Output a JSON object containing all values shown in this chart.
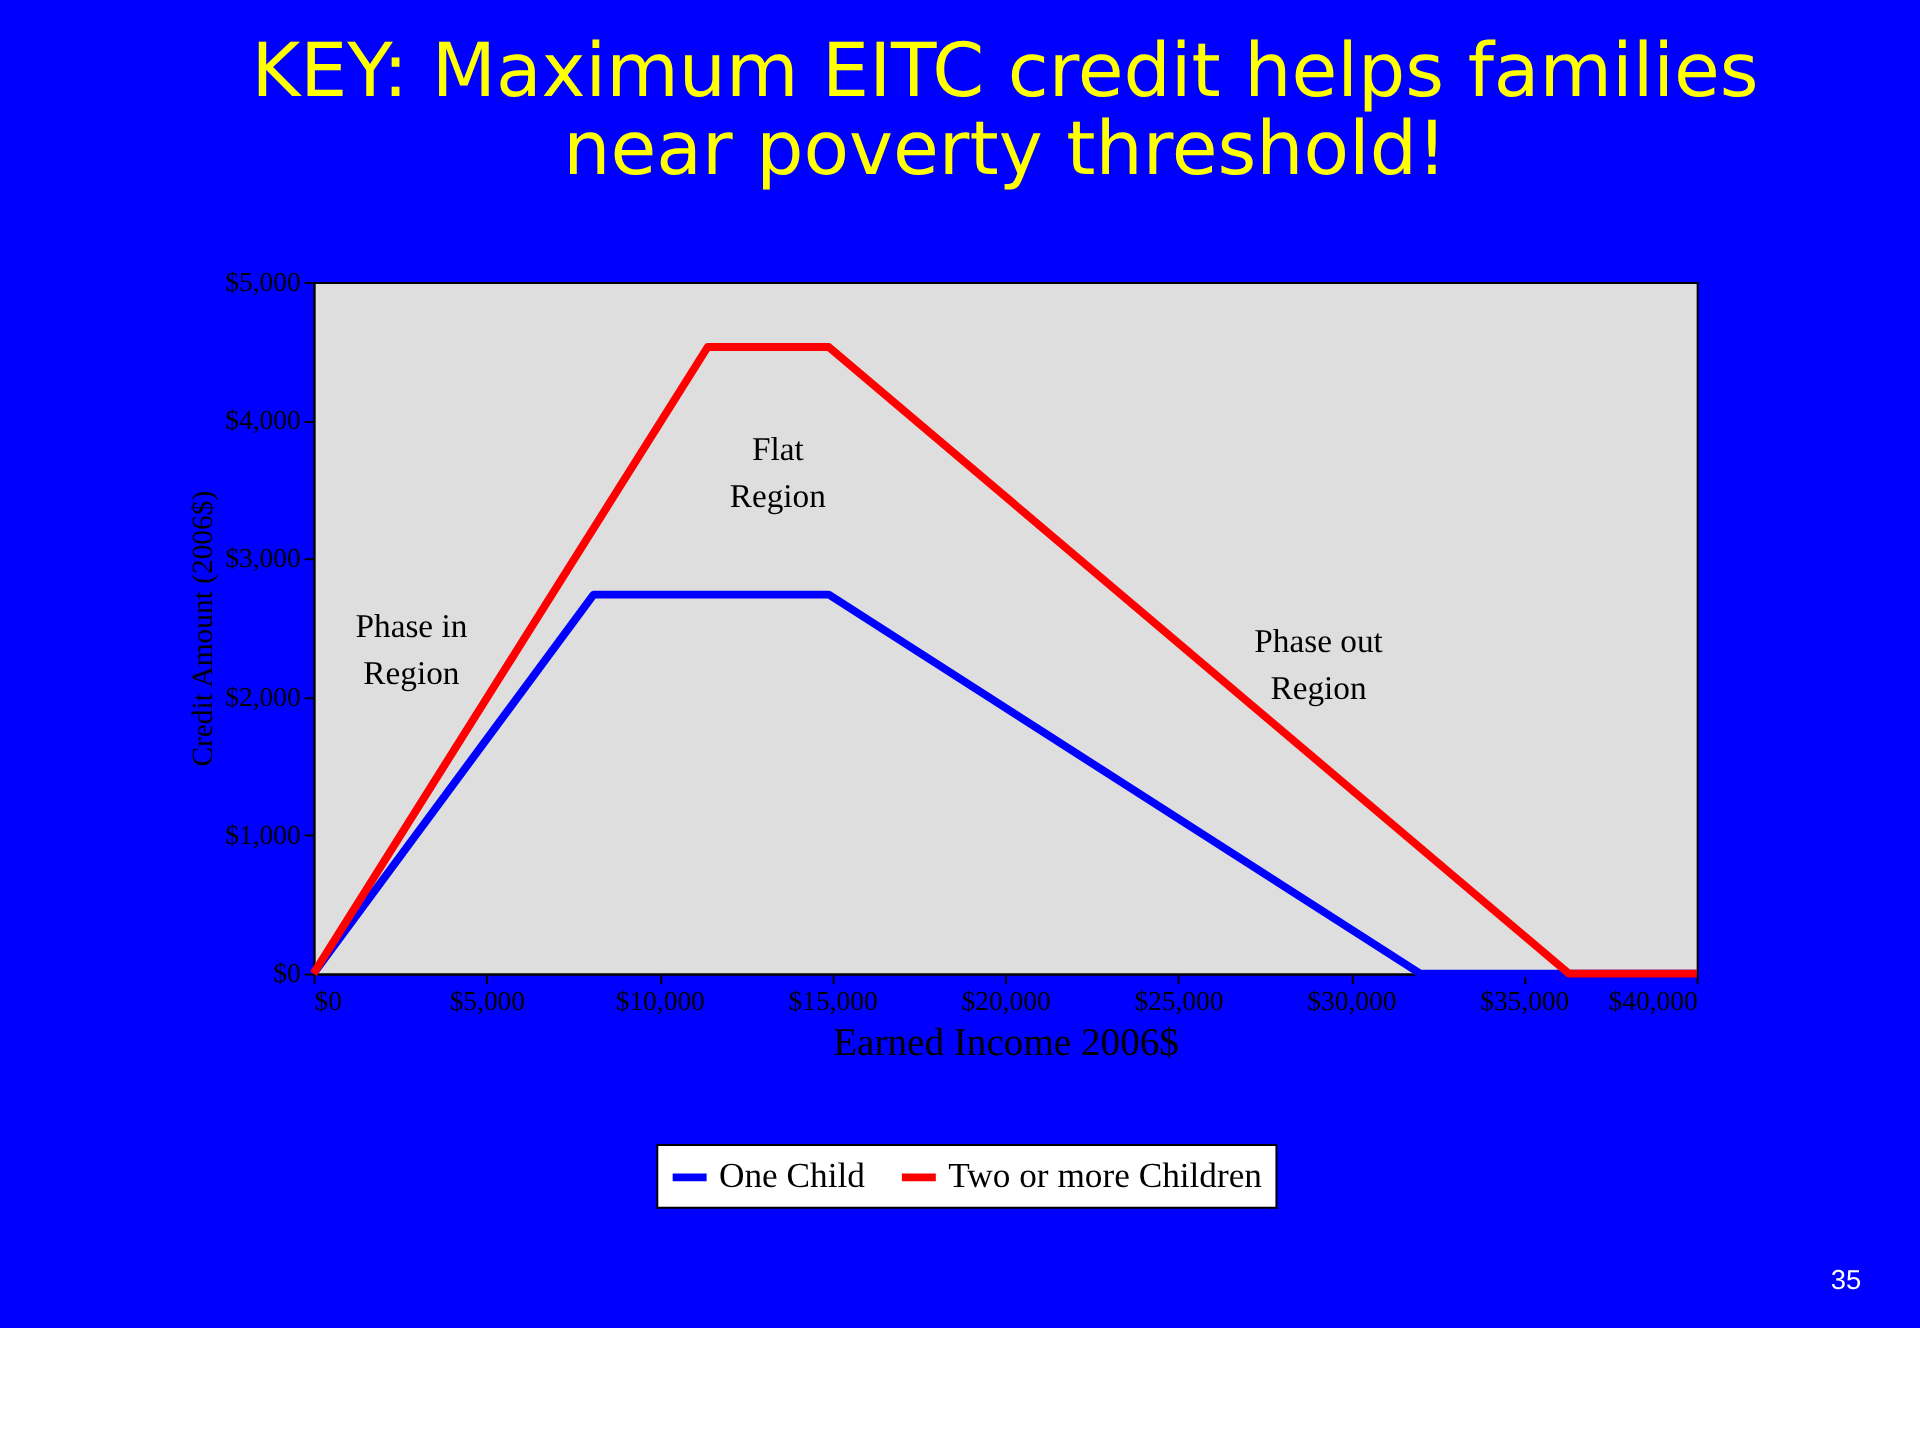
{
  "chart_data": {
    "type": "line",
    "title": [
      "KEY: Maximum EITC credit helps families",
      "near poverty threshold!"
    ],
    "xlabel": "Earned Income 2006$",
    "ylabel": "Credit Amount (2006$)",
    "series": [
      {
        "name": "One Child",
        "color": "#0000ff",
        "x": [
          0,
          8100,
          14900,
          32000,
          40000
        ],
        "values": [
          0,
          2740,
          2740,
          0,
          0
        ]
      },
      {
        "name": "Two or more Children",
        "color": "#ff0000",
        "x": [
          0,
          11400,
          14900,
          36300,
          40000
        ],
        "values": [
          0,
          4530,
          4530,
          0,
          0
        ]
      }
    ],
    "xlim": [
      0,
      40000
    ],
    "xticks": [
      {
        "value": 0,
        "label": "$0"
      },
      {
        "value": 5000,
        "label": "$5,000"
      },
      {
        "value": 10000,
        "label": "$10,000"
      },
      {
        "value": 15000,
        "label": "$15,000"
      },
      {
        "value": 20000,
        "label": "$20,000"
      },
      {
        "value": 25000,
        "label": "$25,000"
      },
      {
        "value": 30000,
        "label": "$30,000"
      },
      {
        "value": 35000,
        "label": "$35,000"
      },
      {
        "value": 40000,
        "label": "$40,000"
      }
    ],
    "ylim": [
      0,
      5000
    ],
    "yticks": [
      {
        "value": 0,
        "label": "$0"
      },
      {
        "value": 1000,
        "label": "$1,000"
      },
      {
        "value": 2000,
        "label": "$2,000"
      },
      {
        "value": 3000,
        "label": "$3,000"
      },
      {
        "value": 4000,
        "label": "$4,000"
      },
      {
        "value": 5000,
        "label": "$5,000"
      }
    ],
    "annotations": [
      "Phase in\nRegion",
      "Flat\nRegion",
      "Phase out\nRegion",
      "35"
    ],
    "legend": "bottom",
    "grid": false,
    "marker": "none",
    "line_style": "solid"
  }
}
